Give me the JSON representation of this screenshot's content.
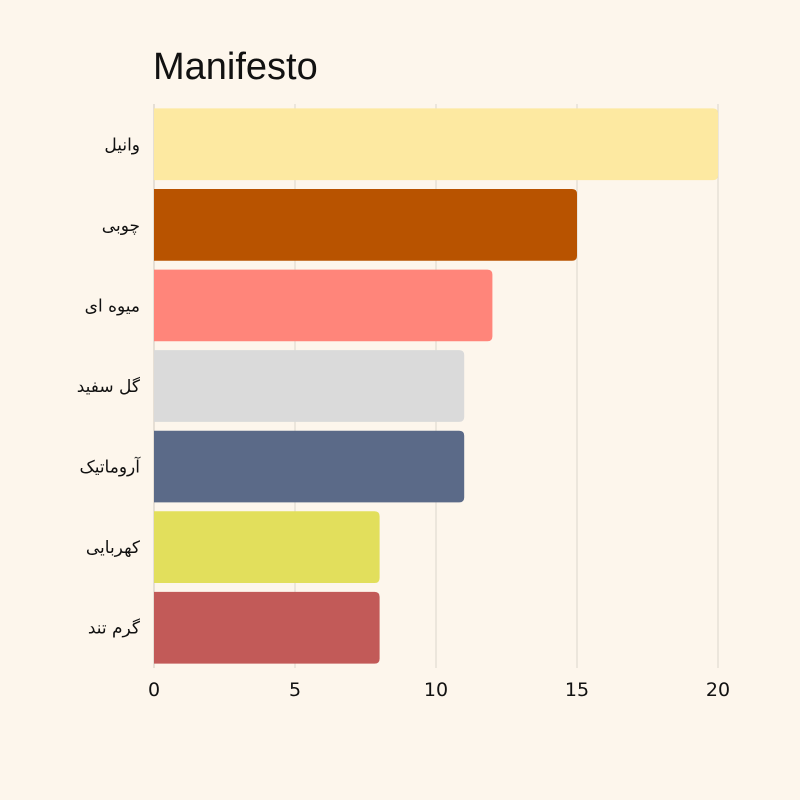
{
  "chart_data": {
    "type": "bar",
    "orientation": "horizontal",
    "title": "Manifesto",
    "categories": [
      "وانیل",
      "چوبی",
      "میوه ای",
      "گل سفید",
      "آروماتیک",
      "کهربایی",
      "گرم تند"
    ],
    "values": [
      20,
      15,
      12,
      11,
      11,
      8,
      8
    ],
    "colors": [
      "#fde9a1",
      "#b85300",
      "#ff857a",
      "#dadada",
      "#5b6a88",
      "#e2df5c",
      "#c25a58"
    ],
    "xlim": [
      0,
      20
    ],
    "xticks": [
      0,
      5,
      10,
      15,
      20
    ],
    "grid": true,
    "xlabel": "",
    "ylabel": ""
  }
}
